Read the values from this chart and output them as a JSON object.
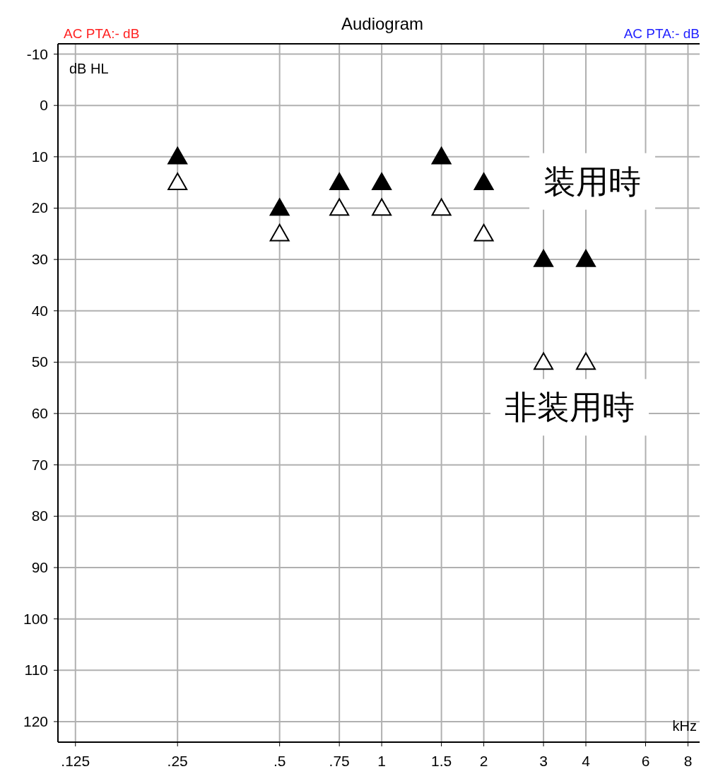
{
  "chart_data": {
    "type": "scatter",
    "title": "Audiogram",
    "xlabel": "kHz",
    "ylabel": "dB HL",
    "log": "x",
    "annotations": [
      "AC PTA:- dB",
      "AC PTA:- dB"
    ],
    "x": [
      0.25,
      0.5,
      0.75,
      1,
      1.5,
      2,
      3,
      4
    ],
    "series": [
      {
        "name": "装用時",
        "color": "#000000",
        "values": [
          10,
          20,
          15,
          15,
          10,
          15,
          30,
          30
        ]
      },
      {
        "name": "非装用時",
        "color": "#000000",
        "values": [
          15,
          25,
          20,
          20,
          20,
          25,
          50,
          50
        ]
      }
    ],
    "xlim": [
      0.111,
      8.66
    ],
    "ylim": [
      124,
      -12
    ],
    "xticks": [
      {
        "value": 0.125,
        "label": ".125"
      },
      {
        "value": 0.25,
        "label": ".25"
      },
      {
        "value": 0.5,
        "label": ".5"
      },
      {
        "value": 0.75,
        "label": ".75"
      },
      1,
      1.5,
      2,
      3,
      4,
      6,
      8
    ],
    "yticks": [
      -10,
      0,
      10,
      20,
      30,
      40,
      50,
      60,
      70,
      80,
      90,
      100,
      110,
      120
    ],
    "grid": true,
    "marker": "triangle",
    "legend": false
  }
}
